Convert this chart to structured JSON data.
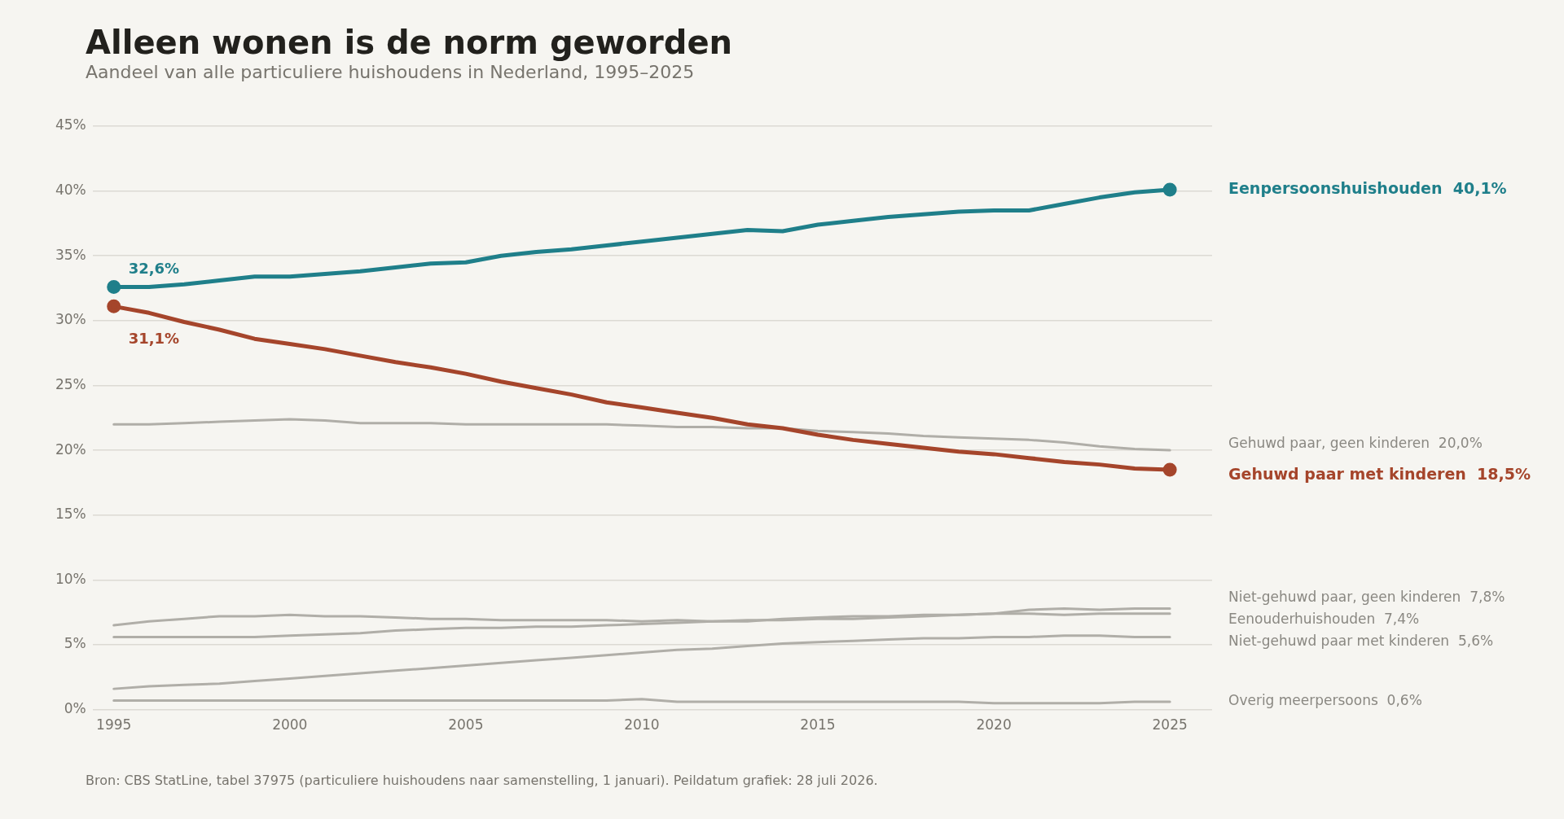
{
  "chart_data": {
    "type": "line",
    "title": "Alleen wonen is de norm geworden",
    "subtitle": "Aandeel van alle particuliere huishoudens in Nederland, 1995–2025",
    "x": [
      1995,
      1996,
      1997,
      1998,
      1999,
      2000,
      2001,
      2002,
      2003,
      2004,
      2005,
      2006,
      2007,
      2008,
      2009,
      2010,
      2011,
      2012,
      2013,
      2014,
      2015,
      2016,
      2017,
      2018,
      2019,
      2020,
      2021,
      2022,
      2023,
      2024,
      2025
    ],
    "xlim": [
      1994.4,
      2026.2
    ],
    "xticks": [
      1995,
      2000,
      2005,
      2010,
      2015,
      2020,
      2025
    ],
    "ylim": [
      0,
      45
    ],
    "yticks": [
      {
        "value": 0,
        "label": "0%"
      },
      {
        "value": 5,
        "label": "5%"
      },
      {
        "value": 10,
        "label": "10%"
      },
      {
        "value": 15,
        "label": "15%"
      },
      {
        "value": 20,
        "label": "20%"
      },
      {
        "value": 25,
        "label": "25%"
      },
      {
        "value": 30,
        "label": "30%"
      },
      {
        "value": 35,
        "label": "35%"
      },
      {
        "value": 40,
        "label": "40%"
      },
      {
        "value": 45,
        "label": "45%"
      }
    ],
    "grid": "y",
    "legend": false,
    "line_style": "solid",
    "series": [
      {
        "name": "Eenpersoonshuishouden",
        "color": "#1f7f8a",
        "values": [
          32.6,
          32.6,
          32.8,
          33.1,
          33.4,
          33.4,
          33.6,
          33.8,
          34.1,
          34.4,
          34.5,
          35.0,
          35.3,
          35.5,
          35.8,
          36.1,
          36.4,
          36.7,
          37.0,
          36.9,
          37.4,
          37.7,
          38.0,
          38.2,
          38.4,
          38.5,
          38.5,
          39.0,
          39.5,
          39.9,
          40.1
        ],
        "value_labels": [
          "32,6%",
          null,
          null,
          null,
          null,
          null,
          null,
          null,
          null,
          null,
          null,
          null,
          null,
          null,
          null,
          null,
          null,
          null,
          null,
          null,
          null,
          null,
          null,
          null,
          null,
          null,
          null,
          null,
          null,
          null,
          "40,1%"
        ]
      },
      {
        "name": "Gehuwd paar met kinderen",
        "color": "#a5452b",
        "values": [
          31.1,
          30.6,
          29.9,
          29.3,
          28.6,
          28.2,
          27.8,
          27.3,
          26.8,
          26.4,
          25.9,
          25.3,
          24.8,
          24.3,
          23.7,
          23.3,
          22.9,
          22.5,
          22.0,
          21.7,
          21.2,
          20.8,
          20.5,
          20.2,
          19.9,
          19.7,
          19.4,
          19.1,
          18.9,
          18.6,
          18.5
        ],
        "value_labels": [
          "31,1%",
          null,
          null,
          null,
          null,
          null,
          null,
          null,
          null,
          null,
          null,
          null,
          null,
          null,
          null,
          null,
          null,
          null,
          null,
          null,
          null,
          null,
          null,
          null,
          null,
          null,
          null,
          null,
          null,
          null,
          "18,5%"
        ]
      },
      {
        "name": "Gehuwd paar, geen kinderen",
        "color": "#b0aea8",
        "values": [
          22.0,
          22.0,
          22.1,
          22.2,
          22.3,
          22.4,
          22.3,
          22.1,
          22.1,
          22.1,
          22.0,
          22.0,
          22.0,
          22.0,
          22.0,
          21.9,
          21.8,
          21.8,
          21.7,
          21.7,
          21.5,
          21.4,
          21.3,
          21.1,
          21.0,
          20.9,
          20.8,
          20.6,
          20.3,
          20.1,
          20.0
        ],
        "value_labels": [
          null,
          null,
          null,
          null,
          null,
          null,
          null,
          null,
          null,
          null,
          null,
          null,
          null,
          null,
          null,
          null,
          null,
          null,
          null,
          null,
          null,
          null,
          null,
          null,
          null,
          null,
          null,
          null,
          null,
          null,
          "20,0%"
        ]
      },
      {
        "name": "Niet-gehuwd paar, geen kinderen",
        "color": "#b0aea8",
        "values": [
          6.5,
          6.8,
          7.0,
          7.2,
          7.2,
          7.3,
          7.2,
          7.2,
          7.1,
          7.0,
          7.0,
          6.9,
          6.9,
          6.9,
          6.9,
          6.8,
          6.9,
          6.8,
          6.8,
          7.0,
          7.1,
          7.2,
          7.2,
          7.3,
          7.3,
          7.4,
          7.7,
          7.8,
          7.7,
          7.8,
          7.8
        ],
        "value_labels": [
          null,
          null,
          null,
          null,
          null,
          null,
          null,
          null,
          null,
          null,
          null,
          null,
          null,
          null,
          null,
          null,
          null,
          null,
          null,
          null,
          null,
          null,
          null,
          null,
          null,
          null,
          null,
          null,
          null,
          null,
          "7,8%"
        ]
      },
      {
        "name": "Eenouderhuishouden",
        "color": "#b0aea8",
        "values": [
          5.6,
          5.6,
          5.6,
          5.6,
          5.6,
          5.7,
          5.8,
          5.9,
          6.1,
          6.2,
          6.3,
          6.3,
          6.4,
          6.4,
          6.5,
          6.6,
          6.7,
          6.8,
          6.9,
          6.9,
          7.0,
          7.0,
          7.1,
          7.2,
          7.3,
          7.4,
          7.4,
          7.3,
          7.4,
          7.4,
          7.4
        ],
        "value_labels": [
          null,
          null,
          null,
          null,
          null,
          null,
          null,
          null,
          null,
          null,
          null,
          null,
          null,
          null,
          null,
          null,
          null,
          null,
          null,
          null,
          null,
          null,
          null,
          null,
          null,
          null,
          null,
          null,
          null,
          null,
          "7,4%"
        ]
      },
      {
        "name": "Niet-gehuwd paar met kinderen",
        "color": "#b0aea8",
        "values": [
          1.6,
          1.8,
          1.9,
          2.0,
          2.2,
          2.4,
          2.6,
          2.8,
          3.0,
          3.2,
          3.4,
          3.6,
          3.8,
          4.0,
          4.2,
          4.4,
          4.6,
          4.7,
          4.9,
          5.1,
          5.2,
          5.3,
          5.4,
          5.5,
          5.5,
          5.6,
          5.6,
          5.7,
          5.7,
          5.6,
          5.6
        ],
        "value_labels": [
          null,
          null,
          null,
          null,
          null,
          null,
          null,
          null,
          null,
          null,
          null,
          null,
          null,
          null,
          null,
          null,
          null,
          null,
          null,
          null,
          null,
          null,
          null,
          null,
          null,
          null,
          null,
          null,
          null,
          null,
          "5,6%"
        ]
      },
      {
        "name": "Overig meerpersoons",
        "color": "#b0aea8",
        "values": [
          0.7,
          0.7,
          0.7,
          0.7,
          0.7,
          0.7,
          0.7,
          0.7,
          0.7,
          0.7,
          0.7,
          0.7,
          0.7,
          0.7,
          0.7,
          0.8,
          0.6,
          0.6,
          0.6,
          0.6,
          0.6,
          0.6,
          0.6,
          0.6,
          0.6,
          0.5,
          0.5,
          0.5,
          0.5,
          0.6,
          0.6
        ],
        "value_labels": [
          null,
          null,
          null,
          null,
          null,
          null,
          null,
          null,
          null,
          null,
          null,
          null,
          null,
          null,
          null,
          null,
          null,
          null,
          null,
          null,
          null,
          null,
          null,
          null,
          null,
          null,
          null,
          null,
          null,
          null,
          "0,6%"
        ]
      }
    ],
    "annotations": [
      "Bron: CBS StatLine, tabel 37975 (particuliere huishoudens naar samenstelling, 1 januari). Peildatum grafiek: 28 juli 2026."
    ]
  }
}
